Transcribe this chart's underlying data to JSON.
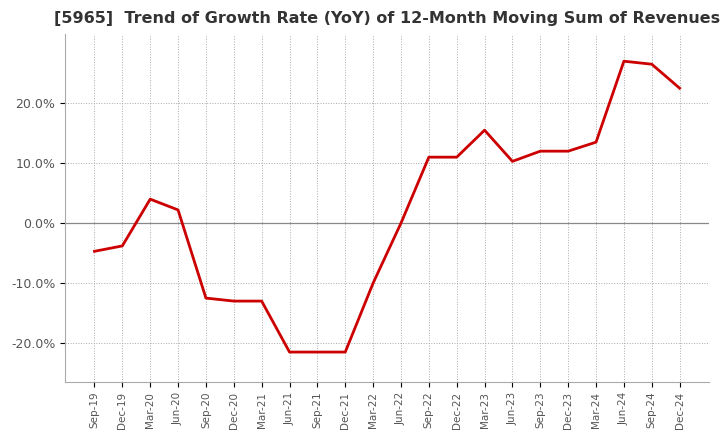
{
  "title": "[5965]  Trend of Growth Rate (YoY) of 12-Month Moving Sum of Revenues",
  "title_fontsize": 11.5,
  "line_color": "#cc0000",
  "line_width": 2.0,
  "background_color": "#ffffff",
  "grid_color": "#aaaaaa",
  "ylim": [
    -0.265,
    0.315
  ],
  "yticks": [
    -0.2,
    -0.1,
    0.0,
    0.1,
    0.2
  ],
  "ytick_labels": [
    "-20.0%",
    "-10.0%",
    "0.0%",
    "10.0%",
    "20.0%"
  ],
  "x_labels": [
    "Sep-19",
    "Dec-19",
    "Mar-20",
    "Jun-20",
    "Sep-20",
    "Dec-20",
    "Mar-21",
    "Jun-21",
    "Sep-21",
    "Dec-21",
    "Mar-22",
    "Jun-22",
    "Sep-22",
    "Dec-22",
    "Mar-23",
    "Jun-23",
    "Sep-23",
    "Dec-23",
    "Mar-24",
    "Jun-24",
    "Sep-24",
    "Dec-24"
  ],
  "values": [
    -0.047,
    -0.038,
    0.04,
    0.022,
    -0.125,
    -0.13,
    -0.13,
    -0.215,
    -0.215,
    -0.215,
    -0.1,
    0.0,
    0.11,
    0.11,
    0.155,
    0.103,
    0.12,
    0.12,
    0.135,
    0.27,
    0.265,
    0.225
  ]
}
